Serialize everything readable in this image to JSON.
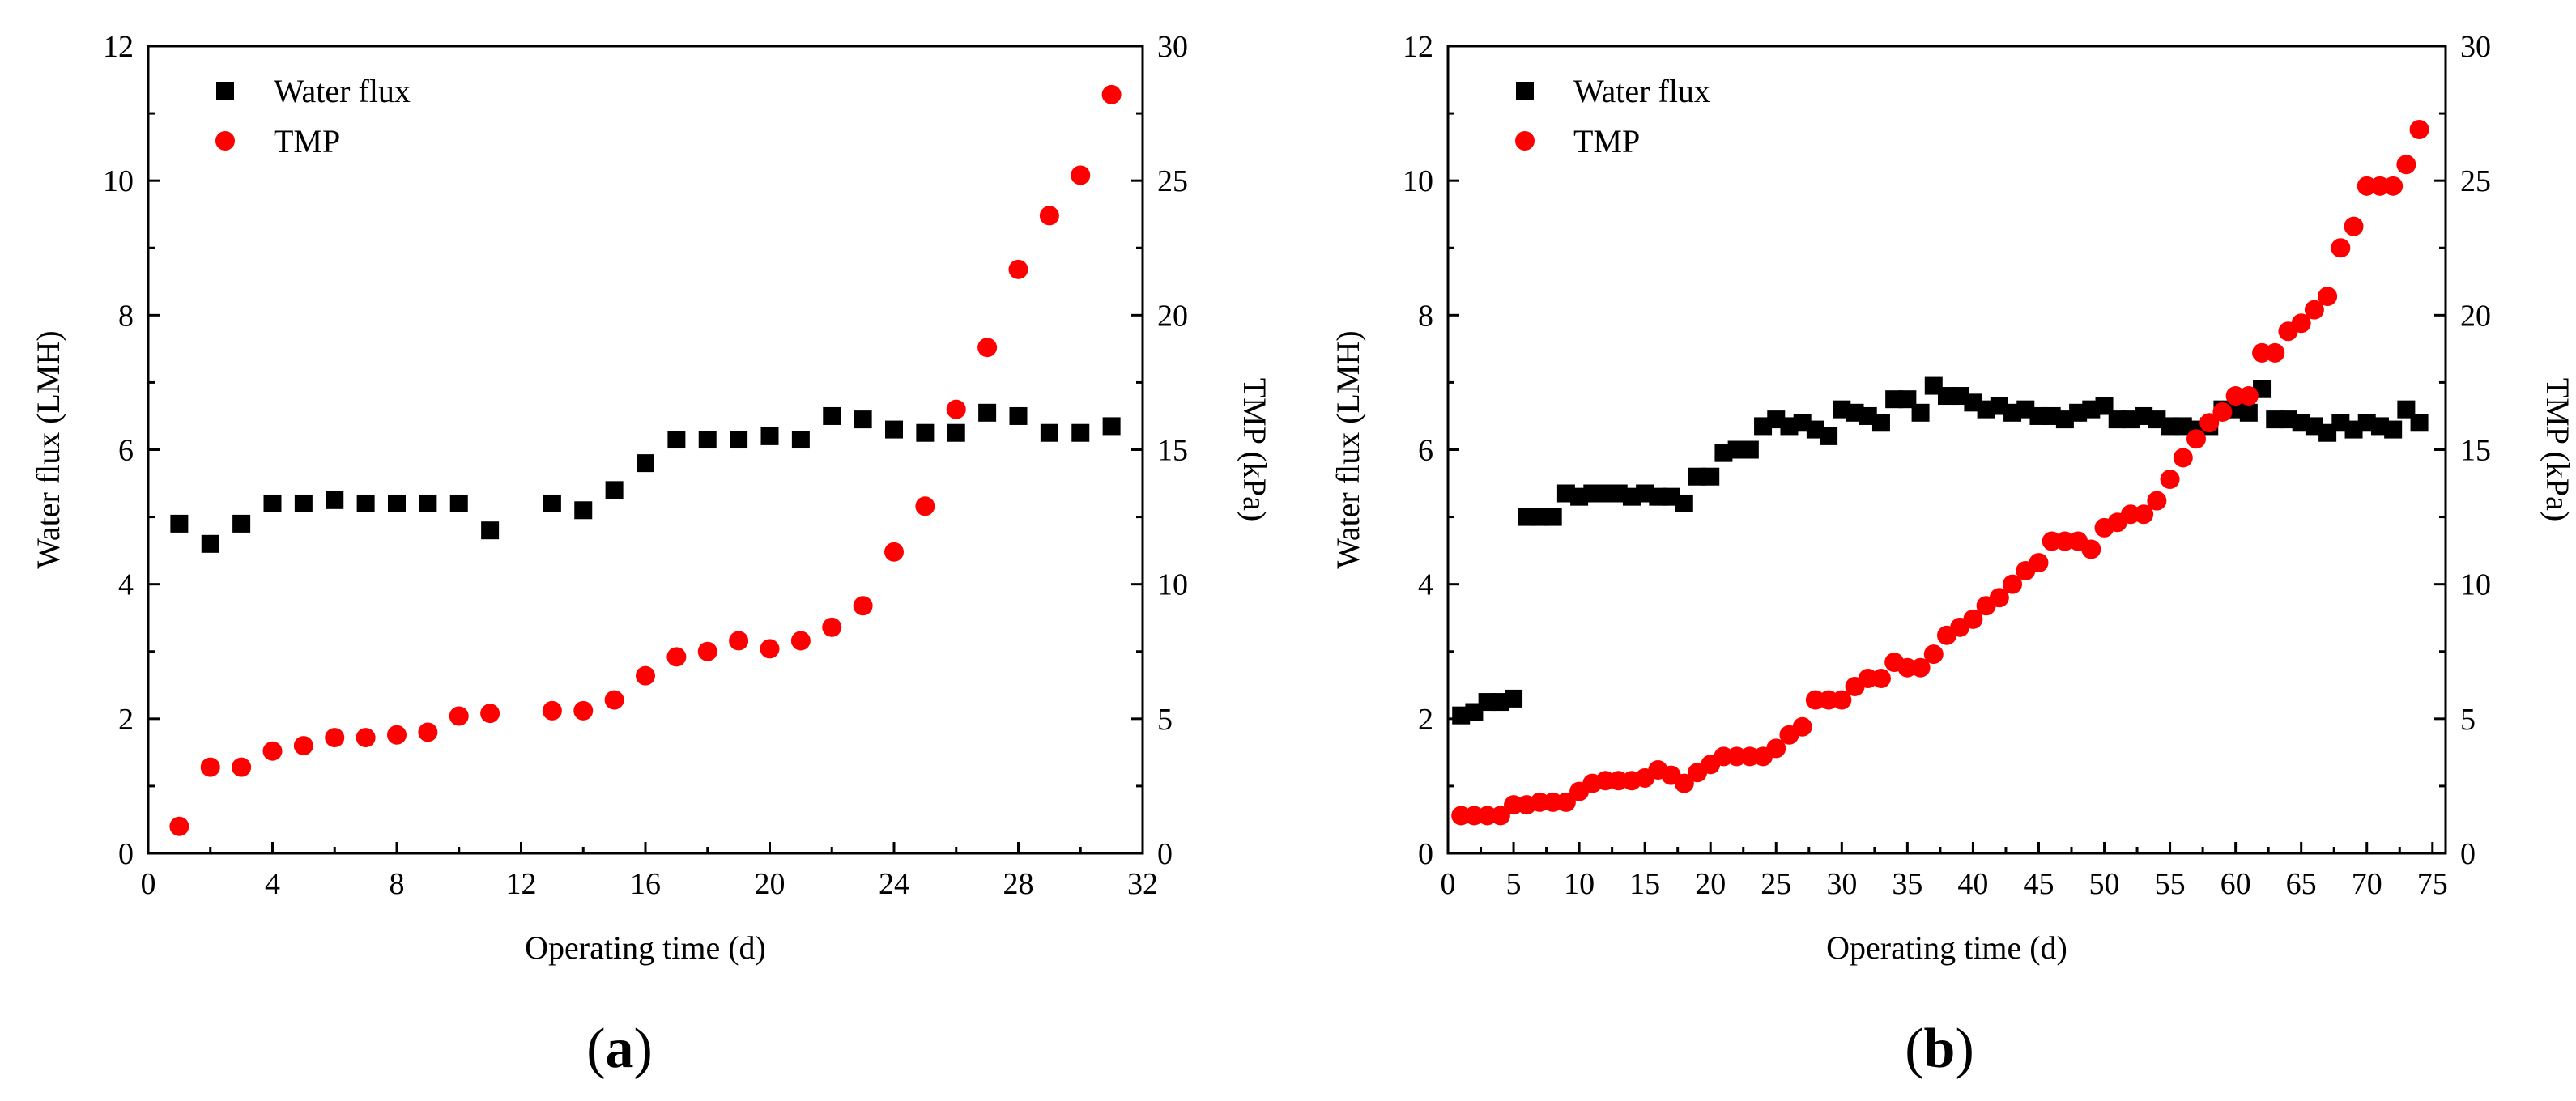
{
  "chart_data": [
    {
      "id": "a",
      "type": "scatter",
      "caption_label": "a",
      "caption_open": "(",
      "caption_close": ")",
      "xlabel": "Operating time (d)",
      "ylabel": "Water flux (LMH)",
      "y2label": "TMP (kPa)",
      "xlim": [
        0,
        32
      ],
      "ylim": [
        0,
        12
      ],
      "y2lim": [
        0,
        30
      ],
      "xticks": [
        0,
        4,
        8,
        12,
        16,
        20,
        24,
        28,
        32
      ],
      "yticks": [
        0,
        2,
        4,
        6,
        8,
        10,
        12
      ],
      "y2ticks": [
        0,
        5,
        10,
        15,
        20,
        25,
        30
      ],
      "legend_position": "top-left",
      "series": [
        {
          "name": "Water flux",
          "axis": "left",
          "marker": "square",
          "color": "#000000",
          "x": [
            1,
            2,
            3,
            4,
            5,
            6,
            7,
            8,
            9,
            10,
            11,
            13,
            14,
            15,
            16,
            17,
            18,
            19,
            20,
            21,
            22,
            23,
            24,
            25,
            26,
            27,
            28,
            29,
            30,
            31
          ],
          "y": [
            4.9,
            4.6,
            4.9,
            5.2,
            5.2,
            5.25,
            5.2,
            5.2,
            5.2,
            5.2,
            4.8,
            5.2,
            5.1,
            5.4,
            5.8,
            6.15,
            6.15,
            6.15,
            6.2,
            6.15,
            6.5,
            6.45,
            6.3,
            6.25,
            6.25,
            6.55,
            6.5,
            6.25,
            6.25,
            6.35
          ]
        },
        {
          "name": "TMP",
          "axis": "right",
          "marker": "circle",
          "color": "#ff0000",
          "x": [
            1,
            2,
            3,
            4,
            5,
            6,
            7,
            8,
            9,
            10,
            11,
            13,
            14,
            15,
            16,
            17,
            18,
            19,
            20,
            21,
            22,
            23,
            24,
            25,
            26,
            27,
            28,
            29,
            30,
            31
          ],
          "y": [
            1,
            3.2,
            3.2,
            3.8,
            4,
            4.3,
            4.3,
            4.4,
            4.5,
            5.1,
            5.2,
            5.3,
            5.3,
            5.7,
            6.6,
            7.3,
            7.5,
            7.9,
            7.6,
            7.9,
            8.4,
            9.2,
            11.2,
            12.9,
            16.5,
            18.8,
            21.7,
            23.7,
            25.2,
            28.2
          ]
        }
      ]
    },
    {
      "id": "b",
      "type": "scatter",
      "caption_label": "b",
      "caption_open": "(",
      "caption_close": ")",
      "xlabel": "Operating time (d)",
      "ylabel": "Water flux (LMH)",
      "y2label": "TMP (kPa)",
      "xlim": [
        0,
        76
      ],
      "ylim": [
        0,
        12
      ],
      "y2lim": [
        0,
        30
      ],
      "xticks": [
        0,
        5,
        10,
        15,
        20,
        25,
        30,
        35,
        40,
        45,
        50,
        55,
        60,
        65,
        70,
        75
      ],
      "yticks": [
        0,
        2,
        4,
        6,
        8,
        10,
        12
      ],
      "y2ticks": [
        0,
        5,
        10,
        15,
        20,
        25,
        30
      ],
      "legend_position": "top-left",
      "series": [
        {
          "name": "Water flux",
          "axis": "left",
          "marker": "square",
          "color": "#000000",
          "x": [
            1,
            2,
            3,
            4,
            5,
            6,
            7,
            8,
            9,
            10,
            11,
            12,
            13,
            14,
            15,
            16,
            17,
            18,
            19,
            20,
            21,
            22,
            23,
            24,
            25,
            26,
            27,
            28,
            29,
            30,
            31,
            32,
            33,
            34,
            35,
            36,
            37,
            38,
            39,
            40,
            41,
            42,
            43,
            44,
            45,
            46,
            47,
            48,
            49,
            50,
            51,
            52,
            53,
            54,
            55,
            56,
            57,
            58,
            59,
            60,
            61,
            62,
            63,
            64,
            65,
            66,
            67,
            68,
            69,
            70,
            71,
            72,
            73,
            74
          ],
          "y": [
            2.05,
            2.1,
            2.25,
            2.25,
            2.3,
            5.0,
            5.0,
            5.0,
            5.35,
            5.3,
            5.35,
            5.35,
            5.35,
            5.3,
            5.35,
            5.3,
            5.3,
            5.2,
            5.6,
            5.6,
            5.95,
            6.0,
            6.0,
            6.35,
            6.45,
            6.35,
            6.4,
            6.3,
            6.2,
            6.6,
            6.55,
            6.5,
            6.4,
            6.75,
            6.75,
            6.55,
            6.95,
            6.8,
            6.8,
            6.7,
            6.6,
            6.65,
            6.55,
            6.6,
            6.5,
            6.5,
            6.45,
            6.55,
            6.6,
            6.65,
            6.45,
            6.45,
            6.5,
            6.45,
            6.35,
            6.35,
            6.3,
            6.35,
            6.6,
            6.6,
            6.55,
            6.9,
            6.45,
            6.45,
            6.4,
            6.35,
            6.25,
            6.4,
            6.3,
            6.4,
            6.35,
            6.3,
            6.6,
            6.4
          ]
        },
        {
          "name": "TMP",
          "axis": "right",
          "marker": "circle",
          "color": "#ff0000",
          "x": [
            1,
            2,
            3,
            4,
            5,
            6,
            7,
            8,
            9,
            10,
            11,
            12,
            13,
            14,
            15,
            16,
            17,
            18,
            19,
            20,
            21,
            22,
            23,
            24,
            25,
            26,
            27,
            28,
            29,
            30,
            31,
            32,
            33,
            34,
            35,
            36,
            37,
            38,
            39,
            40,
            41,
            42,
            43,
            44,
            45,
            46,
            47,
            48,
            49,
            50,
            51,
            52,
            53,
            54,
            55,
            56,
            57,
            58,
            59,
            60,
            61,
            62,
            63,
            64,
            65,
            66,
            67,
            68,
            69,
            70,
            71,
            72,
            73,
            74
          ],
          "y": [
            1.4,
            1.4,
            1.4,
            1.4,
            1.8,
            1.8,
            1.9,
            1.9,
            1.9,
            2.3,
            2.6,
            2.7,
            2.7,
            2.7,
            2.8,
            3.1,
            2.9,
            2.6,
            3.0,
            3.3,
            3.6,
            3.6,
            3.6,
            3.6,
            3.9,
            4.4,
            4.7,
            5.7,
            5.7,
            5.7,
            6.2,
            6.5,
            6.5,
            7.1,
            6.9,
            6.9,
            7.4,
            8.1,
            8.4,
            8.7,
            9.2,
            9.5,
            10.0,
            10.5,
            10.8,
            11.6,
            11.6,
            11.6,
            11.3,
            12.1,
            12.3,
            12.6,
            12.6,
            13.1,
            13.9,
            14.7,
            15.4,
            16.0,
            16.4,
            17.0,
            17.0,
            18.6,
            18.6,
            19.4,
            19.7,
            20.2,
            20.7,
            22.5,
            23.3,
            24.8,
            24.8,
            24.8,
            25.6,
            26.9
          ]
        }
      ]
    }
  ]
}
